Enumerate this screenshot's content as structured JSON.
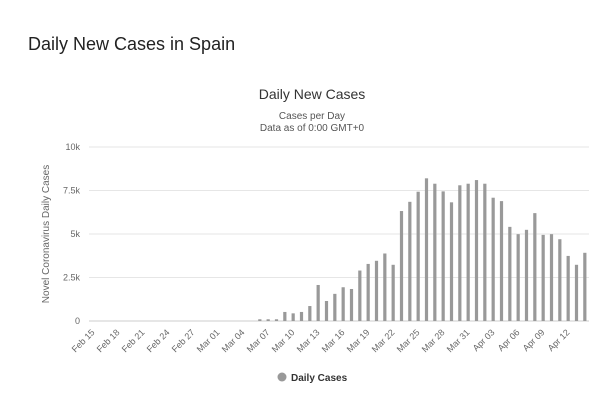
{
  "page_title": "Daily New Cases in Spain",
  "chart_data": {
    "type": "bar",
    "title": "Daily New Cases",
    "subtitle": [
      "Cases per Day",
      "Data as of 0:00 GMT+0"
    ],
    "xlabel": "",
    "ylabel": "Novel Coronavirus Daily Cases",
    "ylim": [
      0,
      10000
    ],
    "yticks": [
      0,
      2500,
      5000,
      7500,
      10000
    ],
    "ytick_labels": [
      "0",
      "2.5k",
      "5k",
      "7.5k",
      "10k"
    ],
    "grid": true,
    "legend": {
      "position": "bottom-center",
      "entries": [
        "Daily Cases"
      ]
    },
    "color": "#999999",
    "categories": [
      "Feb 15",
      "Feb 16",
      "Feb 17",
      "Feb 18",
      "Feb 19",
      "Feb 20",
      "Feb 21",
      "Feb 22",
      "Feb 23",
      "Feb 24",
      "Feb 25",
      "Feb 26",
      "Feb 27",
      "Feb 28",
      "Feb 29",
      "Mar 01",
      "Mar 02",
      "Mar 03",
      "Mar 04",
      "Mar 05",
      "Mar 06",
      "Mar 07",
      "Mar 08",
      "Mar 09",
      "Mar 10",
      "Mar 11",
      "Mar 12",
      "Mar 13",
      "Mar 14",
      "Mar 15",
      "Mar 16",
      "Mar 17",
      "Mar 18",
      "Mar 19",
      "Mar 20",
      "Mar 21",
      "Mar 22",
      "Mar 23",
      "Mar 24",
      "Mar 25",
      "Mar 26",
      "Mar 27",
      "Mar 28",
      "Mar 29",
      "Mar 30",
      "Mar 31",
      "Apr 01",
      "Apr 02",
      "Apr 03",
      "Apr 04",
      "Apr 05",
      "Apr 06",
      "Apr 07",
      "Apr 08",
      "Apr 09",
      "Apr 10",
      "Apr 11",
      "Apr 12",
      "Apr 13",
      "Apr 14"
    ],
    "xtick_labels": [
      "Feb 15",
      "Feb 18",
      "Feb 21",
      "Feb 24",
      "Feb 27",
      "Mar 01",
      "Mar 04",
      "Mar 07",
      "Mar 10",
      "Mar 13",
      "Mar 16",
      "Mar 19",
      "Mar 22",
      "Mar 25",
      "Mar 28",
      "Mar 31",
      "Apr 03",
      "Apr 06",
      "Apr 09",
      "Apr 12"
    ],
    "values": [
      0,
      0,
      0,
      0,
      0,
      0,
      0,
      0,
      0,
      0,
      0,
      0,
      0,
      0,
      0,
      0,
      0,
      0,
      0,
      0,
      100,
      100,
      100,
      520,
      440,
      520,
      860,
      2070,
      1150,
      1560,
      1940,
      1840,
      2900,
      3280,
      3460,
      3880,
      3230,
      6320,
      6850,
      7430,
      8200,
      7890,
      7450,
      6820,
      7800,
      7890,
      8100,
      7890,
      7085,
      6890,
      5410,
      4990,
      5240,
      6200,
      4950,
      4990,
      4700,
      3740,
      3230,
      3920
    ]
  }
}
